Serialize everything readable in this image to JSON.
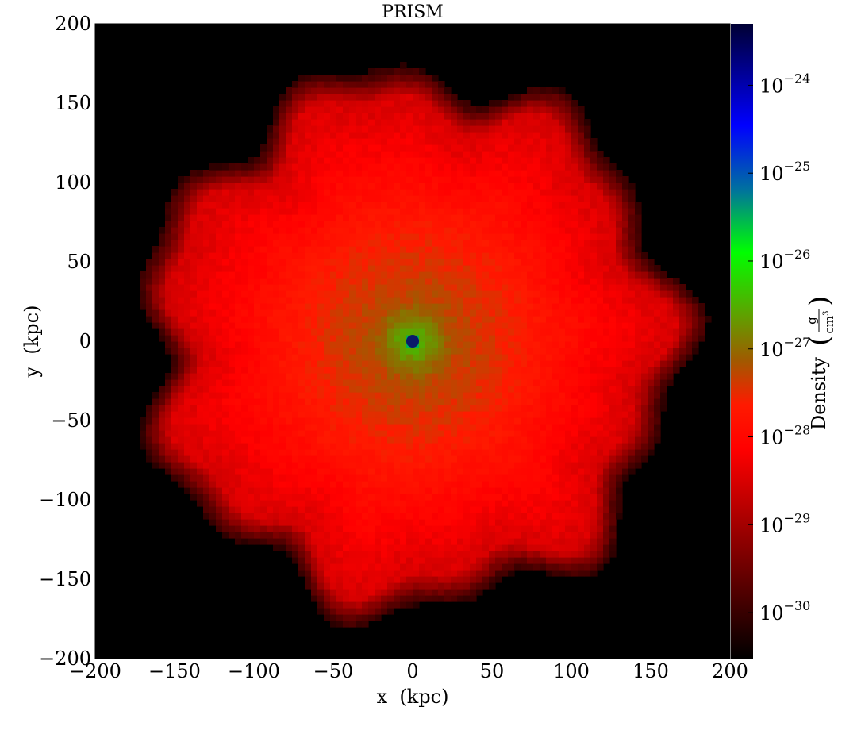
{
  "chart_data": {
    "type": "heatmap",
    "title": "PRISM",
    "xlabel": "x  (kpc)",
    "ylabel": "y  (kpc)",
    "xlim": [
      -200,
      200
    ],
    "ylim": [
      -200,
      200
    ],
    "xticks": [
      -200,
      -150,
      -100,
      -50,
      0,
      50,
      100,
      150,
      200
    ],
    "yticks": [
      -200,
      -150,
      -100,
      -50,
      0,
      50,
      100,
      150,
      200
    ],
    "xtick_labels": [
      "−200",
      "−150",
      "−100",
      "−50",
      "0",
      "50",
      "100",
      "150",
      "200"
    ],
    "ytick_labels": [
      "−200",
      "−150",
      "−100",
      "−50",
      "0",
      "50",
      "100",
      "150",
      "200"
    ],
    "grid": false,
    "colorbar": {
      "label": "Density",
      "unit_numerator": "g",
      "unit_denominator": "cm",
      "unit_denominator_exponent": "3",
      "scale": "log",
      "range": [
        3e-31,
        5e-24
      ],
      "ticks": [
        1e-30,
        1e-29,
        1e-28,
        1e-27,
        1e-26,
        1e-25,
        1e-24
      ],
      "tick_base": "10",
      "tick_exponents": [
        "−30",
        "−29",
        "−28",
        "−27",
        "−26",
        "−25",
        "−24"
      ],
      "colors": [
        "#000000",
        "#ff0000",
        "#00ff00",
        "#0000ff",
        "#000033"
      ]
    },
    "field": {
      "description_units": "g/cm^3",
      "center": [
        0,
        0
      ],
      "core_radius_kpc": 5,
      "core_density": 3e-26,
      "inner_density": 3e-27,
      "mid_density": 2e-28,
      "outer_density": 3e-29,
      "edge_radius_kpc": 170
    }
  }
}
